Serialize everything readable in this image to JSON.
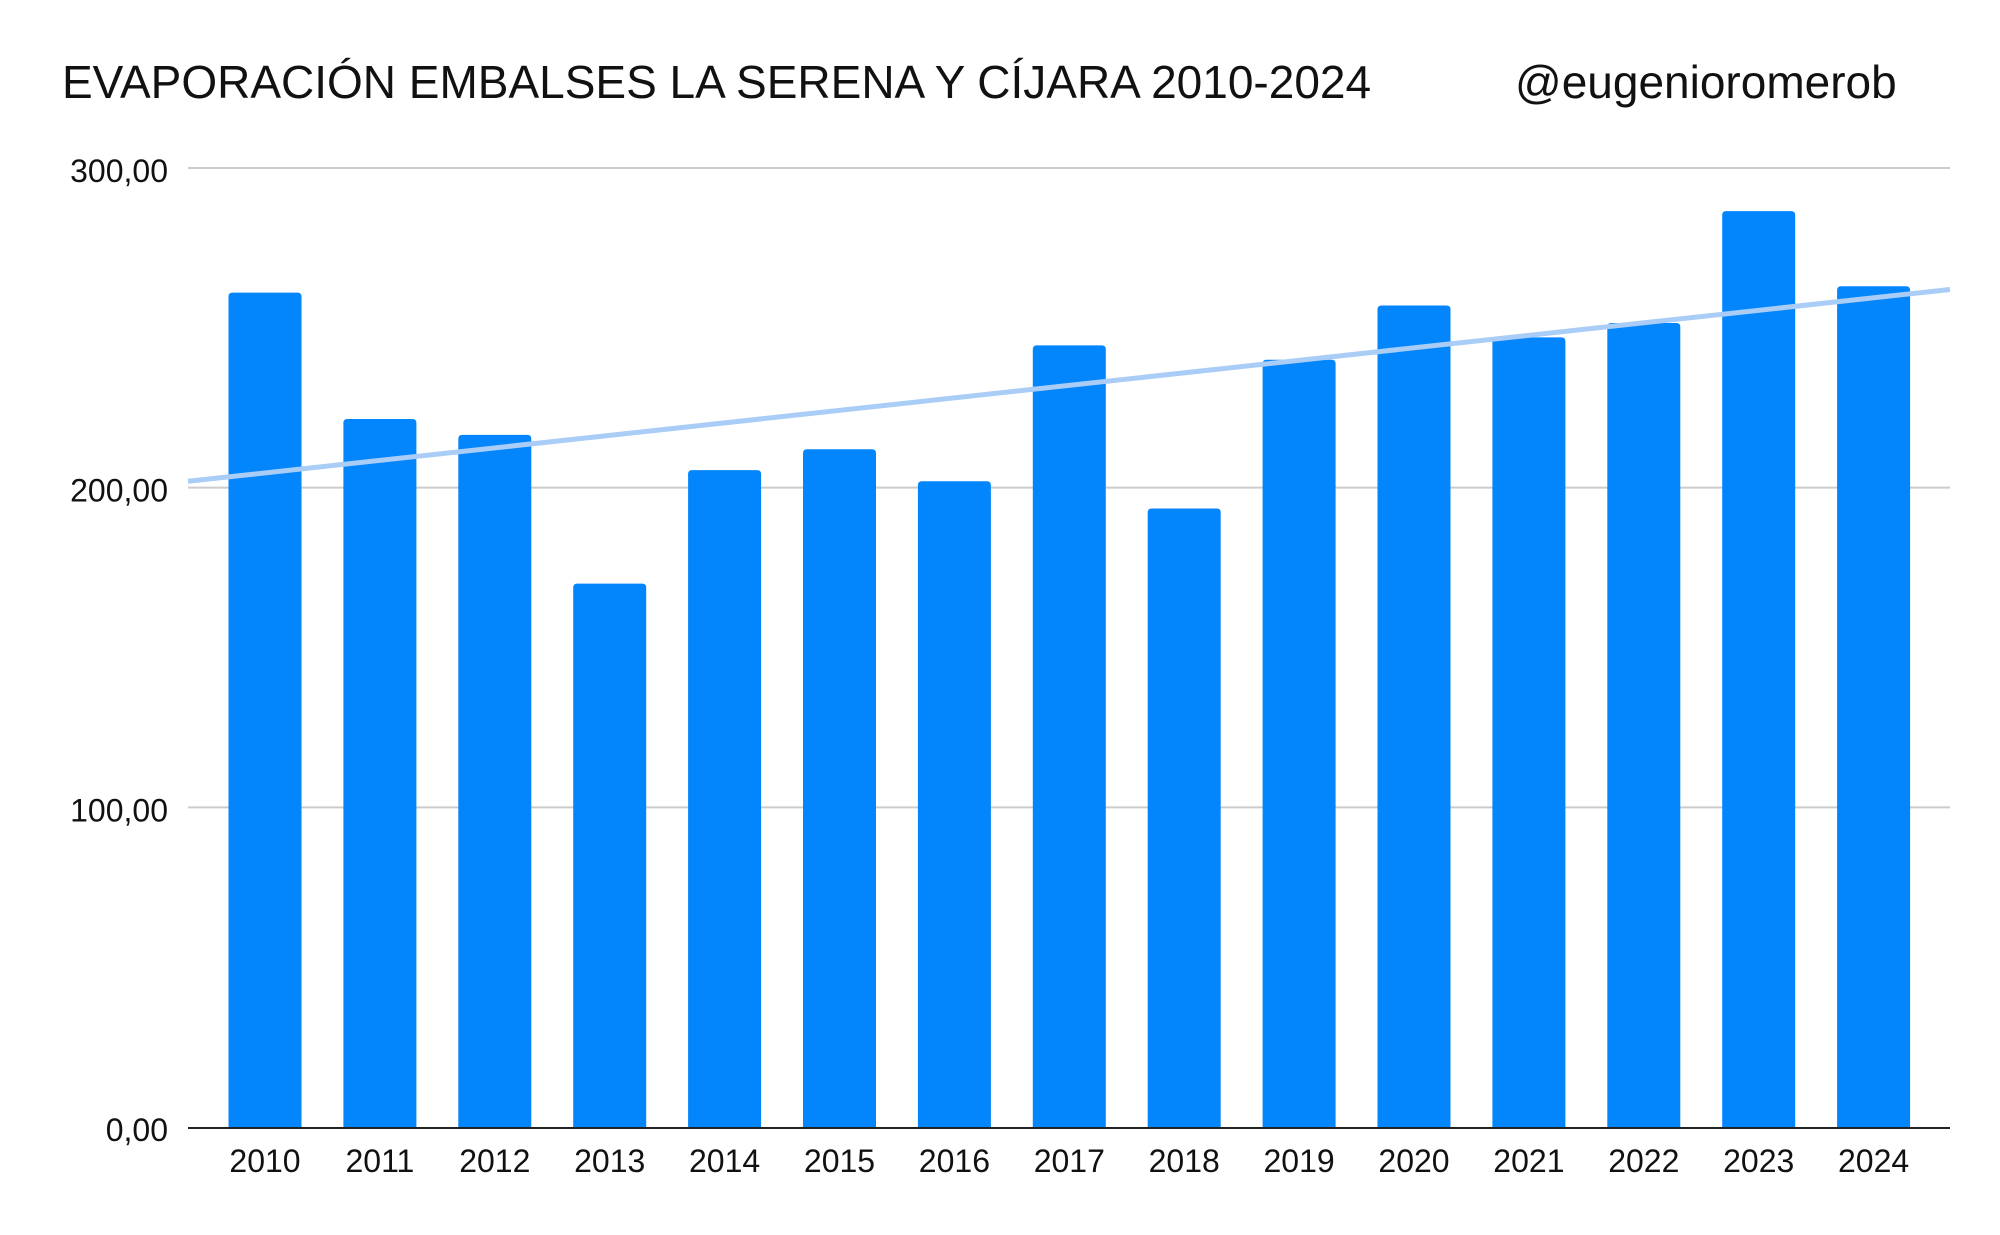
{
  "chart_data": {
    "type": "bar",
    "title": "EVAPORACIÓN EMBALSES LA SERENA Y CÍJARA 2010-2024",
    "subtitle": "@eugenioromerob",
    "xlabel": "",
    "ylabel": "",
    "ylim": [
      0,
      300
    ],
    "yticks": [
      "0,00",
      "100,00",
      "200,00",
      "300,00"
    ],
    "ytick_values": [
      0,
      100,
      200,
      300
    ],
    "grid": true,
    "legend": "none",
    "categories": [
      "2010",
      "2011",
      "2012",
      "2013",
      "2014",
      "2015",
      "2016",
      "2017",
      "2018",
      "2019",
      "2020",
      "2021",
      "2022",
      "2023",
      "2024"
    ],
    "values": [
      261,
      221.5,
      216.5,
      170,
      205.5,
      212,
      202,
      244.5,
      193.5,
      240,
      257,
      247,
      251.5,
      286.5,
      263
    ],
    "bar_color": "#0385FB",
    "trendline": {
      "type": "linear",
      "color": "#A9CDF6",
      "y_start": 202,
      "y_end": 262
    }
  }
}
